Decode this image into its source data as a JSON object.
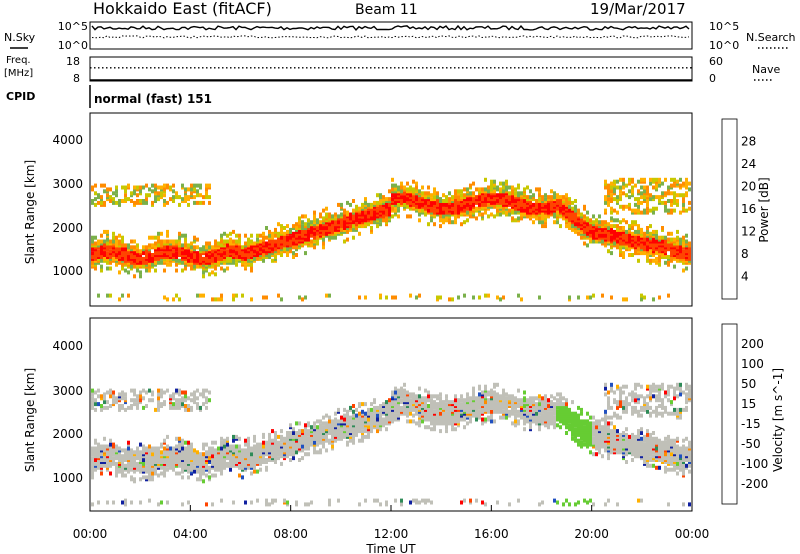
{
  "header": {
    "station": "Hokkaido East (fitACF)",
    "beam": "Beam 11",
    "date": "19/Mar/2017"
  },
  "labels": {
    "nsky": "N.Sky",
    "nsearch": "N.Search",
    "freq_line1": "Freq.",
    "freq_line2": "[MHz]",
    "nave": "Nave",
    "cpid": "CPID",
    "mode": "normal (fast) 151"
  },
  "chart_data": [
    {
      "type": "line",
      "name": "noise",
      "ylim_label_top": "10^5",
      "ylim_label_bottom": "10^0",
      "right_top": "10^5",
      "right_bottom": "10^0",
      "series": [
        {
          "name": "N.Sky",
          "style": "solid",
          "level": 0.78
        },
        {
          "name": "N.Search",
          "style": "dotted",
          "level": 0.45
        }
      ]
    },
    {
      "type": "line",
      "name": "frequency",
      "left_ticks": [
        "18",
        "8"
      ],
      "right_ticks": [
        "60",
        "0"
      ],
      "series": [
        {
          "name": "Freq.",
          "unit": "MHz",
          "style": "solid",
          "level": 0.0
        },
        {
          "name": "Nave",
          "style": "dotted",
          "level": 0.55
        }
      ]
    },
    {
      "type": "heatmap",
      "name": "power",
      "ylabel": "Slant Range [km]",
      "yticks": [
        "1000",
        "2000",
        "3000",
        "4000"
      ],
      "colorbar_label": "Power [dB]",
      "colorbar_ticks": [
        "28",
        "24",
        "20",
        "16",
        "12",
        "8",
        "4"
      ],
      "colors": [
        "#ff0000",
        "#ff4500",
        "#ff8c00",
        "#ffb000",
        "#c8c800",
        "#7ab04a",
        "#2e8b57",
        "#1e5aa8",
        "#0000ff"
      ]
    },
    {
      "type": "heatmap",
      "name": "velocity",
      "ylabel": "Slant Range [km]",
      "yticks": [
        "1000",
        "2000",
        "3000",
        "4000"
      ],
      "colorbar_label": "Velocity [m s^-1]",
      "colorbar_ticks": [
        "200",
        "100",
        "50",
        "15",
        "-15",
        "-50",
        "-100",
        "-200"
      ],
      "colors": [
        "#1020a0",
        "#2050c0",
        "#2e8b57",
        "#66cc33",
        "#c0c0b8",
        "#ffb000",
        "#ff8c00",
        "#ff4500",
        "#ff0000"
      ]
    }
  ],
  "x_axis": {
    "ticks": [
      "00:00",
      "04:00",
      "08:00",
      "12:00",
      "16:00",
      "20:00",
      "00:00"
    ],
    "label": "Time UT"
  }
}
